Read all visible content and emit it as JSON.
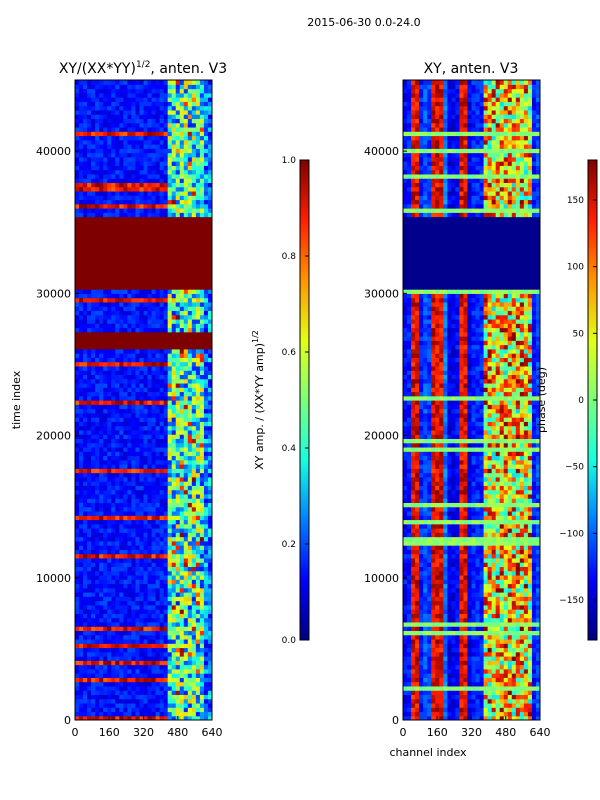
{
  "figure": {
    "suptitle": "2015-06-30 0.0-24.0"
  },
  "colormap": [
    "#00007f",
    "#0000ff",
    "#0080ff",
    "#15ffe1",
    "#7dff7a",
    "#e4ff13",
    "#ff9400",
    "#ff1e00",
    "#7f0000"
  ],
  "chart_data": [
    {
      "type": "heatmap",
      "title_main": "XY/(XX*YY)",
      "title_sup": "1/2",
      "title_tail": ", anten. V3",
      "xlabel": "",
      "ylabel": "time index",
      "xlim": [
        0,
        640
      ],
      "ylim": [
        0,
        45000
      ],
      "xticks": [
        0,
        160,
        320,
        480,
        640
      ],
      "yticks": [
        0,
        10000,
        20000,
        30000,
        40000
      ],
      "colorbar": {
        "label_main": "XY amp. / (XX*YY amp)",
        "label_sup": "1/2",
        "range": [
          0,
          1
        ],
        "ticks": [
          "0.0",
          "0.2",
          "0.4",
          "0.6",
          "0.8",
          "1.0"
        ],
        "tick_values": [
          0,
          0.2,
          0.4,
          0.6,
          0.8,
          1.0
        ]
      },
      "saturated_time_bands": [
        [
          26000,
          27200
        ],
        [
          30300,
          35400
        ]
      ],
      "grid": false
    },
    {
      "type": "heatmap",
      "title": "XY, anten. V3",
      "xlabel": "channel index",
      "ylabel": "",
      "xlim": [
        0,
        640
      ],
      "ylim": [
        0,
        45000
      ],
      "xticks": [
        0,
        160,
        320,
        480,
        640
      ],
      "yticks": [
        0,
        10000,
        20000,
        30000,
        40000
      ],
      "colorbar": {
        "label": "phase (deg)",
        "range": [
          -180,
          180
        ],
        "ticks": [
          "150",
          "100",
          "50",
          "0",
          "−50",
          "−100",
          "−150"
        ],
        "tick_values": [
          150,
          100,
          50,
          0,
          -50,
          -100,
          -150
        ]
      },
      "flagged_time_bands": [
        [
          30300,
          35400
        ]
      ],
      "grid": false
    }
  ]
}
